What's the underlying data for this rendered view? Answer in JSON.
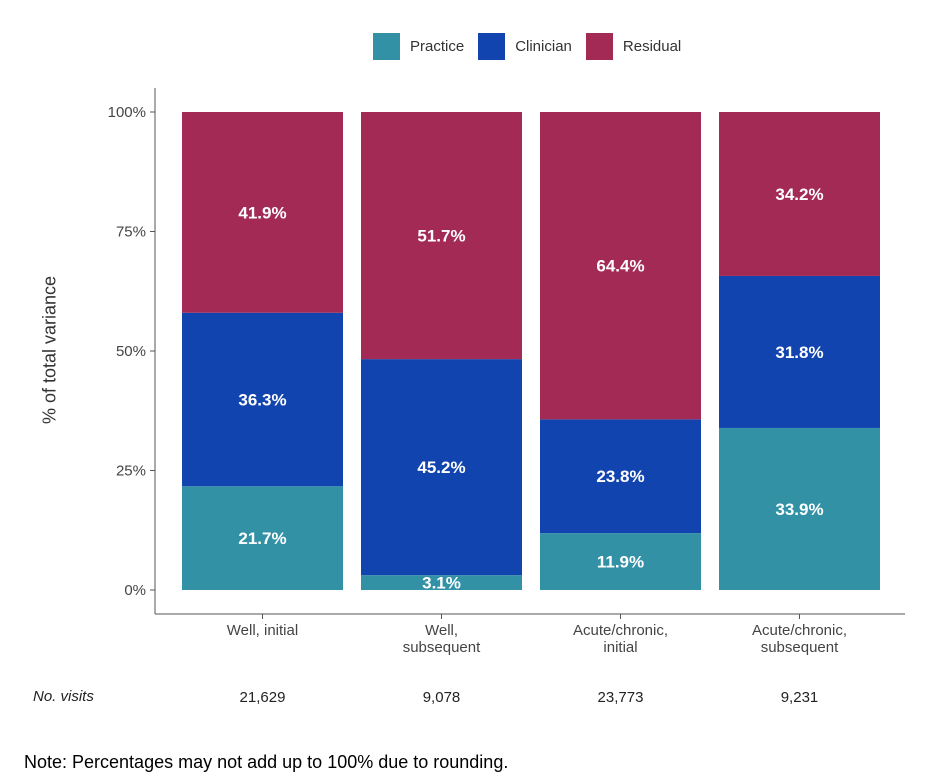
{
  "legend": [
    {
      "label": "Practice",
      "color": "#3391a6"
    },
    {
      "label": "Clinician",
      "color": "#1244b0"
    },
    {
      "label": "Residual",
      "color": "#a22a55"
    }
  ],
  "chart_data": {
    "type": "bar",
    "stacked": true,
    "ylabel": "% of total variance",
    "ylim": [
      0,
      100
    ],
    "yticks": [
      "0%",
      "25%",
      "50%",
      "75%",
      "100%"
    ],
    "ytick_values": [
      0,
      25,
      50,
      75,
      100
    ],
    "categories": [
      "Well, initial",
      "Well, subsequent",
      "Acute/chronic, initial",
      "Acute/chronic, subsequent"
    ],
    "category_lines": [
      [
        "Well, initial"
      ],
      [
        "Well,",
        "subsequent"
      ],
      [
        "Acute/chronic,",
        "initial"
      ],
      [
        "Acute/chronic,",
        "subsequent"
      ]
    ],
    "series": [
      {
        "name": "Practice",
        "values": [
          21.7,
          3.1,
          11.9,
          33.9
        ],
        "labels": [
          "21.7%",
          "3.1%",
          "11.9%",
          "33.9%"
        ],
        "color": "#3391a6"
      },
      {
        "name": "Clinician",
        "values": [
          36.3,
          45.2,
          23.8,
          31.8
        ],
        "labels": [
          "36.3%",
          "45.2%",
          "23.8%",
          "31.8%"
        ],
        "color": "#1244b0"
      },
      {
        "name": "Residual",
        "values": [
          41.9,
          51.7,
          64.4,
          34.2
        ],
        "labels": [
          "41.9%",
          "51.7%",
          "64.4%",
          "34.2%"
        ],
        "color": "#a22a55"
      }
    ],
    "legend_position": "top",
    "grid": false
  },
  "visits": {
    "label": "No. visits",
    "values": [
      "21,629",
      "9,078",
      "23,773",
      "9,231"
    ]
  },
  "note": "Note: Percentages may not add up to 100% due to rounding."
}
